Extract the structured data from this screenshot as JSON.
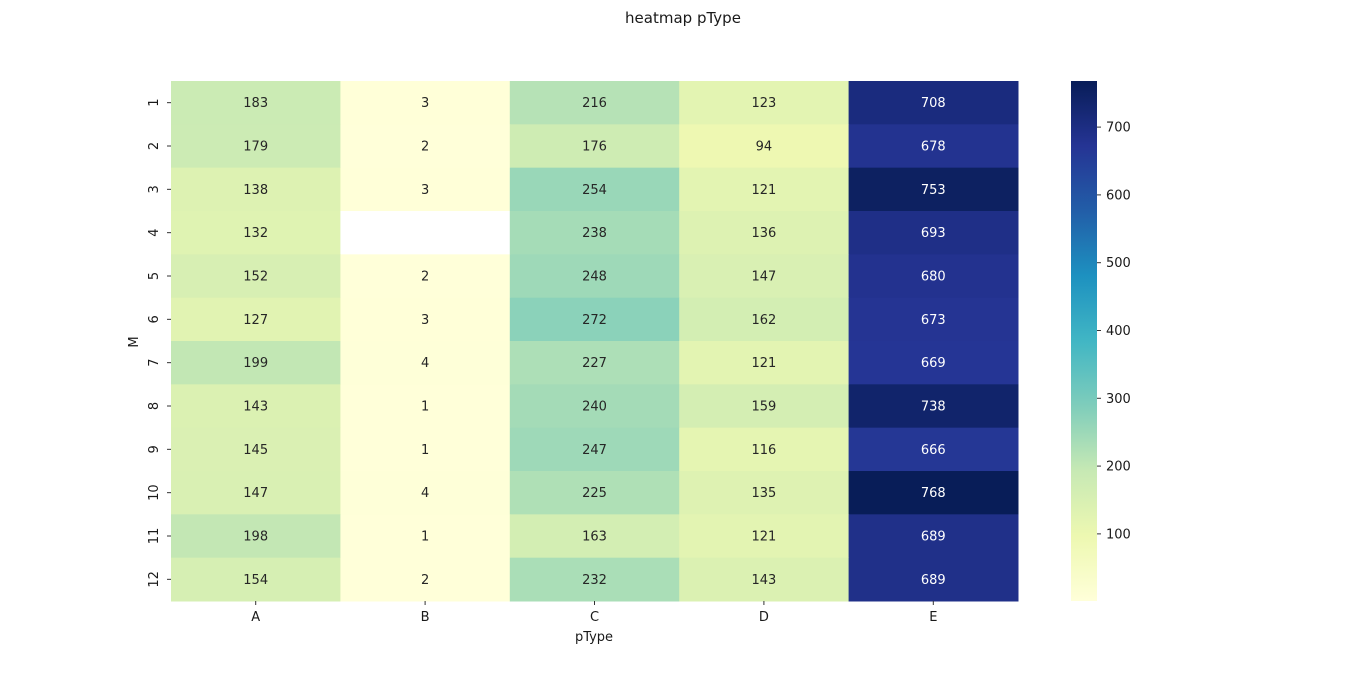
{
  "chart_data": {
    "type": "heatmap",
    "title": "heatmap pType",
    "xlabel": "pType",
    "ylabel": "M",
    "x_categories": [
      "A",
      "B",
      "C",
      "D",
      "E"
    ],
    "y_categories": [
      "1",
      "2",
      "3",
      "4",
      "5",
      "6",
      "7",
      "8",
      "9",
      "10",
      "11",
      "12"
    ],
    "values": [
      [
        183,
        3,
        216,
        123,
        708
      ],
      [
        179,
        2,
        176,
        94,
        678
      ],
      [
        138,
        3,
        254,
        121,
        753
      ],
      [
        132,
        null,
        238,
        136,
        693
      ],
      [
        152,
        2,
        248,
        147,
        680
      ],
      [
        127,
        3,
        272,
        162,
        673
      ],
      [
        199,
        4,
        227,
        121,
        669
      ],
      [
        143,
        1,
        240,
        159,
        738
      ],
      [
        145,
        1,
        247,
        116,
        666
      ],
      [
        147,
        4,
        225,
        135,
        768
      ],
      [
        198,
        1,
        163,
        121,
        689
      ],
      [
        154,
        2,
        232,
        143,
        689
      ]
    ],
    "colormap": "YlGnBu",
    "color_range": [
      1,
      768
    ],
    "colorbar_ticks": [
      100,
      200,
      300,
      400,
      500,
      600,
      700
    ],
    "annotations": true,
    "grid": false
  }
}
